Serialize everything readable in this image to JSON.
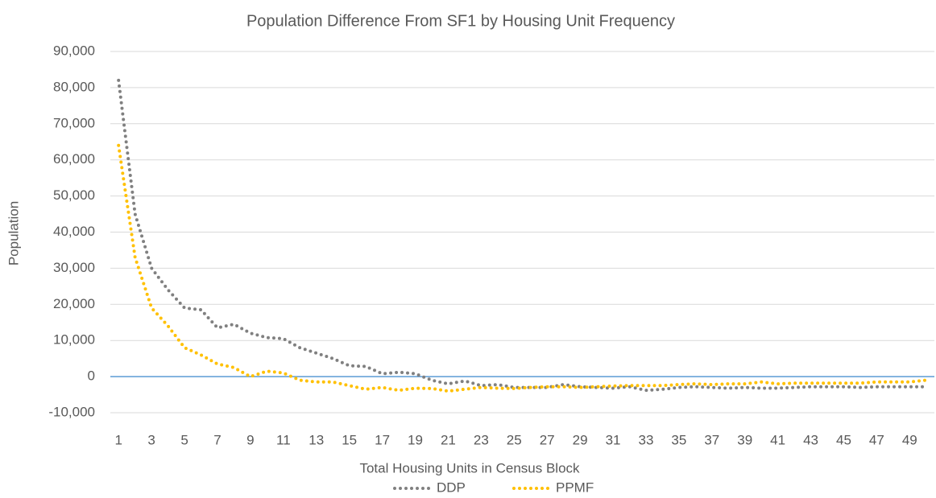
{
  "chart_data": {
    "type": "line",
    "title": "Population Difference From SF1 by Housing Unit Frequency",
    "x_label": "Total Housing Units in Census Block",
    "y_label": "Population",
    "categories": [
      1,
      null,
      3,
      null,
      5,
      null,
      7,
      null,
      9,
      null,
      11,
      null,
      13,
      null,
      15,
      null,
      17,
      null,
      19,
      null,
      21,
      null,
      23,
      null,
      25,
      null,
      27,
      null,
      29,
      null,
      31,
      null,
      33,
      null,
      35,
      null,
      37,
      null,
      39,
      null,
      41,
      null,
      43,
      null,
      45,
      null,
      47,
      null,
      49,
      null
    ],
    "series": [
      {
        "name": "DDP",
        "color": "#808080",
        "values": [
          82000,
          45000,
          30000,
          24000,
          19000,
          18500,
          13500,
          14500,
          12000,
          10800,
          10500,
          8000,
          6500,
          5000,
          3000,
          2800,
          800,
          1200,
          800,
          -1000,
          -2000,
          -1200,
          -2500,
          -2200,
          -3000,
          -3000,
          -3000,
          -2200,
          -2800,
          -3000,
          -3200,
          -2800,
          -3800,
          -3500,
          -3000,
          -2800,
          -3000,
          -3200,
          -3000,
          -3200,
          -3200,
          -3000,
          -2800,
          -2800,
          -2800,
          -3000,
          -2800,
          -2800,
          -2800,
          -2800
        ]
      },
      {
        "name": "PPMF",
        "color": "#ffc000",
        "values": [
          64000,
          33000,
          19000,
          14000,
          8000,
          6000,
          3500,
          2500,
          0,
          1500,
          1000,
          -1000,
          -1500,
          -1500,
          -2500,
          -3500,
          -3000,
          -3800,
          -3200,
          -3300,
          -4000,
          -3500,
          -3000,
          -3200,
          -3300,
          -3000,
          -2800,
          -2800,
          -3000,
          -2800,
          -2600,
          -2500,
          -2500,
          -2500,
          -2200,
          -2000,
          -2200,
          -2000,
          -2000,
          -1500,
          -2000,
          -1800,
          -1800,
          -1800,
          -1800,
          -1800,
          -1500,
          -1500,
          -1500,
          -1000
        ]
      }
    ],
    "ylim": [
      -10000,
      90000
    ],
    "yticks": [
      {
        "value": -10000,
        "label": "-10,000"
      },
      0,
      {
        "value": 10000,
        "label": "10,000"
      },
      {
        "value": 20000,
        "label": "20,000"
      },
      {
        "value": 30000,
        "label": "30,000"
      },
      {
        "value": 40000,
        "label": "40,000"
      },
      {
        "value": 50000,
        "label": "50,000"
      },
      {
        "value": 60000,
        "label": "60,000"
      },
      {
        "value": 70000,
        "label": "70,000"
      },
      {
        "value": 80000,
        "label": "80,000"
      },
      {
        "value": 90000,
        "label": "90,000"
      }
    ],
    "grid": true,
    "zero_line_color": "#5b9bd5",
    "legend": "bottom"
  }
}
